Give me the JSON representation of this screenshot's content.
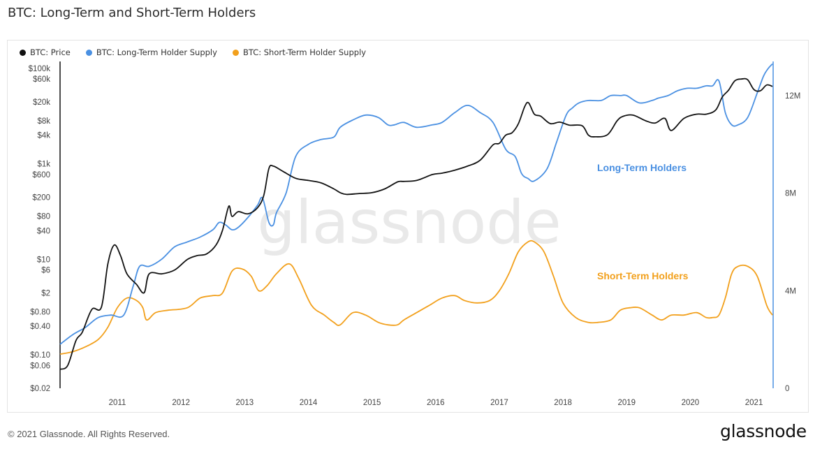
{
  "header": {
    "title": "BTC: Long-Term and Short-Term Holders"
  },
  "footer": {
    "copyright": "© 2021 Glassnode. All Rights Reserved.",
    "brand": "glassnode"
  },
  "watermark": "glassnode",
  "colors": {
    "price": "#111111",
    "lth": "#4a90e2",
    "sth": "#f2a01c"
  },
  "chart_data": {
    "type": "line",
    "title": "BTC: Long-Term and Short-Term Holders",
    "legend_position": "top-left",
    "grid": false,
    "x_ticks": [
      "2011",
      "2012",
      "2013",
      "2014",
      "2015",
      "2016",
      "2017",
      "2018",
      "2019",
      "2020",
      "2021"
    ],
    "x_range": [
      2010.6,
      2021.79
    ],
    "y_left": {
      "scale": "log",
      "range": [
        0.02,
        140000
      ],
      "tick_labels": [
        "$100k",
        "$60k",
        "$20k",
        "$8k",
        "$4k",
        "$1k",
        "$600",
        "$200",
        "$80",
        "$40",
        "$10",
        "$6",
        "$2",
        "$0.80",
        "$0.40",
        "$0.10",
        "$0.06",
        "$0.02"
      ],
      "tick_values": [
        100000,
        60000,
        20000,
        8000,
        4000,
        1000,
        600,
        200,
        80,
        40,
        10,
        6,
        2,
        0.8,
        0.4,
        0.1,
        0.06,
        0.02
      ]
    },
    "y_right": {
      "scale": "linear",
      "range": [
        0,
        13400000
      ],
      "tick_labels": [
        "12M",
        "8M",
        "4M",
        "0"
      ],
      "tick_values": [
        12000000,
        8000000,
        4000000,
        0
      ]
    },
    "annotations": [
      {
        "text": "Long-Term Holders",
        "series": "lth"
      },
      {
        "text": "Short-Term Holders",
        "series": "sth"
      }
    ],
    "series": [
      {
        "id": "price",
        "name": "BTC: Price",
        "axis": "left",
        "x": [
          2010.6,
          2010.72,
          2010.85,
          2010.95,
          2011.1,
          2011.25,
          2011.35,
          2011.45,
          2011.55,
          2011.65,
          2011.8,
          2011.92,
          2012.0,
          2012.2,
          2012.4,
          2012.6,
          2012.75,
          2012.9,
          2013.05,
          2013.15,
          2013.25,
          2013.3,
          2013.4,
          2013.55,
          2013.7,
          2013.8,
          2013.88,
          2013.95,
          2014.1,
          2014.3,
          2014.5,
          2014.7,
          2014.9,
          2015.0,
          2015.1,
          2015.3,
          2015.5,
          2015.7,
          2015.9,
          2016.0,
          2016.2,
          2016.45,
          2016.6,
          2016.8,
          2017.0,
          2017.2,
          2017.4,
          2017.5,
          2017.6,
          2017.7,
          2017.8,
          2017.9,
          2017.96,
          2018.05,
          2018.15,
          2018.3,
          2018.45,
          2018.6,
          2018.8,
          2018.9,
          2019.0,
          2019.2,
          2019.35,
          2019.45,
          2019.6,
          2019.8,
          2019.95,
          2020.1,
          2020.2,
          2020.4,
          2020.6,
          2020.75,
          2020.9,
          2021.0,
          2021.1,
          2021.2,
          2021.3,
          2021.4,
          2021.5,
          2021.6,
          2021.7,
          2021.79
        ],
        "values": [
          0.05,
          0.06,
          0.2,
          0.3,
          0.9,
          1,
          8,
          20,
          12,
          5,
          3,
          2,
          5,
          5,
          6,
          10,
          12,
          13,
          20,
          40,
          130,
          80,
          100,
          90,
          120,
          220,
          800,
          900,
          700,
          500,
          450,
          400,
          300,
          250,
          230,
          240,
          250,
          300,
          420,
          430,
          450,
          600,
          640,
          740,
          900,
          1200,
          2500,
          2700,
          4000,
          4500,
          7000,
          16000,
          19000,
          11000,
          10000,
          7000,
          7500,
          6500,
          6300,
          4000,
          3700,
          4100,
          8000,
          10000,
          10500,
          8000,
          7200,
          9000,
          5000,
          9000,
          11000,
          11000,
          13500,
          25000,
          35000,
          55000,
          60000,
          58000,
          36000,
          34000,
          45000,
          42000
        ]
      },
      {
        "id": "lth",
        "name": "BTC: Long-Term Holder Supply",
        "axis": "right",
        "x": [
          2010.6,
          2010.8,
          2011.0,
          2011.2,
          2011.4,
          2011.6,
          2011.75,
          2011.85,
          2012.0,
          2012.2,
          2012.4,
          2012.6,
          2012.8,
          2013.0,
          2013.1,
          2013.2,
          2013.3,
          2013.4,
          2013.55,
          2013.7,
          2013.78,
          2013.88,
          2013.95,
          2014.0,
          2014.15,
          2014.3,
          2014.5,
          2014.7,
          2014.9,
          2015.0,
          2015.2,
          2015.4,
          2015.6,
          2015.75,
          2015.85,
          2016.0,
          2016.2,
          2016.45,
          2016.6,
          2016.8,
          2017.0,
          2017.2,
          2017.4,
          2017.6,
          2017.75,
          2017.85,
          2017.95,
          2018.05,
          2018.25,
          2018.4,
          2018.55,
          2018.65,
          2018.75,
          2018.9,
          2019.1,
          2019.25,
          2019.4,
          2019.5,
          2019.7,
          2019.9,
          2020.0,
          2020.15,
          2020.3,
          2020.45,
          2020.6,
          2020.75,
          2020.85,
          2020.95,
          2021.05,
          2021.15,
          2021.25,
          2021.4,
          2021.55,
          2021.65,
          2021.72,
          2021.79
        ],
        "values": [
          1800000,
          2200000,
          2500000,
          2900000,
          3000000,
          3000000,
          4200000,
          5000000,
          5000000,
          5300000,
          5800000,
          6000000,
          6200000,
          6500000,
          6800000,
          6700000,
          6500000,
          6600000,
          7000000,
          7500000,
          7800000,
          6800000,
          6700000,
          7200000,
          8000000,
          9500000,
          10000000,
          10200000,
          10300000,
          10700000,
          11000000,
          11200000,
          11100000,
          10800000,
          10800000,
          10900000,
          10700000,
          10800000,
          10900000,
          11300000,
          11600000,
          11300000,
          10900000,
          9800000,
          9500000,
          8800000,
          8600000,
          8500000,
          9000000,
          10100000,
          11200000,
          11500000,
          11700000,
          11800000,
          11800000,
          12000000,
          12000000,
          12000000,
          11700000,
          11800000,
          11900000,
          12000000,
          12200000,
          12300000,
          12300000,
          12400000,
          12400000,
          12600000,
          11300000,
          10800000,
          10800000,
          11100000,
          12100000,
          12800000,
          13100000,
          13300000
        ]
      },
      {
        "id": "sth",
        "name": "BTC: Short-Term Holder Supply",
        "axis": "right",
        "x": [
          2010.6,
          2010.8,
          2011.0,
          2011.2,
          2011.35,
          2011.5,
          2011.65,
          2011.8,
          2011.9,
          2011.96,
          2012.1,
          2012.3,
          2012.6,
          2012.8,
          2013.0,
          2013.15,
          2013.3,
          2013.45,
          2013.6,
          2013.72,
          2013.85,
          2014.0,
          2014.2,
          2014.35,
          2014.55,
          2014.75,
          2014.9,
          2015.0,
          2015.2,
          2015.4,
          2015.6,
          2015.75,
          2015.9,
          2016.0,
          2016.2,
          2016.4,
          2016.6,
          2016.8,
          2016.95,
          2017.15,
          2017.35,
          2017.5,
          2017.65,
          2017.8,
          2017.95,
          2018.05,
          2018.2,
          2018.35,
          2018.5,
          2018.7,
          2018.9,
          2019.05,
          2019.25,
          2019.4,
          2019.55,
          2019.7,
          2019.9,
          2020.05,
          2020.2,
          2020.4,
          2020.6,
          2020.75,
          2020.85,
          2020.95,
          2021.05,
          2021.15,
          2021.25,
          2021.4,
          2021.55,
          2021.7,
          2021.79
        ],
        "values": [
          1400000,
          1500000,
          1700000,
          2000000,
          2500000,
          3300000,
          3700000,
          3600000,
          3300000,
          2800000,
          3100000,
          3200000,
          3300000,
          3700000,
          3800000,
          3900000,
          4800000,
          4900000,
          4600000,
          4000000,
          4200000,
          4700000,
          5100000,
          4500000,
          3400000,
          3000000,
          2700000,
          2600000,
          3100000,
          3000000,
          2700000,
          2600000,
          2600000,
          2800000,
          3100000,
          3400000,
          3700000,
          3800000,
          3600000,
          3500000,
          3600000,
          4000000,
          4700000,
          5600000,
          6000000,
          6000000,
          5600000,
          4600000,
          3500000,
          2900000,
          2700000,
          2700000,
          2800000,
          3200000,
          3300000,
          3300000,
          3000000,
          2800000,
          3000000,
          3000000,
          3100000,
          2900000,
          2900000,
          3000000,
          3700000,
          4700000,
          5000000,
          5000000,
          4600000,
          3400000,
          3000000
        ]
      }
    ]
  }
}
